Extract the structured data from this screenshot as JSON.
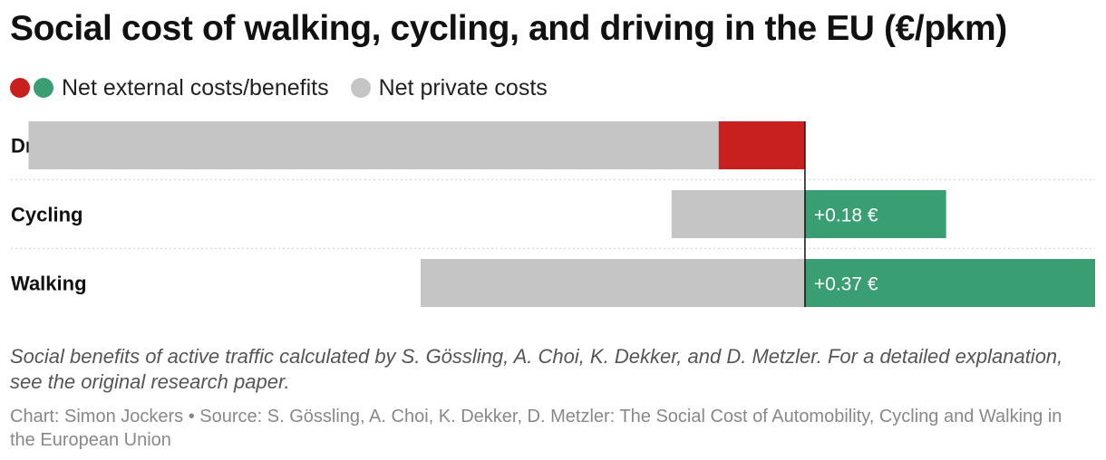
{
  "title": "Social cost of walking, cycling, and driving in the EU (€/pkm)",
  "legend": {
    "external_label": "Net external costs/benefits",
    "private_label": "Net private costs"
  },
  "colors": {
    "external_cost": "#c81f1f",
    "external_benefit": "#399e72",
    "private": "#c5c5c5",
    "axis": "#111111",
    "gridline": "#d5d5d5",
    "text": "#111111"
  },
  "chart_data": {
    "type": "bar",
    "orientation": "horizontal-diverging",
    "title": "Social cost of walking, cycling, and driving in the EU (€/pkm)",
    "categories": [
      "Driving",
      "Cycling",
      "Walking"
    ],
    "series": [
      {
        "name": "Net private costs",
        "values": [
          -0.88,
          -0.17,
          -0.49
        ]
      },
      {
        "name": "Net external costs/benefits",
        "values": [
          -0.11,
          0.18,
          0.37
        ]
      }
    ],
    "data_labels": [
      "",
      "+0.18 €",
      "+0.37 €"
    ],
    "xlim": [
      -0.89,
      0.37
    ],
    "xlabel": "",
    "ylabel": ""
  },
  "footnote": "Social benefits of active traffic calculated by S. Gössling, A. Choi, K. Dekker, and D. Metzler. For a detailed explanation, see the original research paper.",
  "credit": "Chart: Simon Jockers • Source: S. Gössling, A. Choi, K. Dekker, D. Metzler: The Social Cost of Automobility, Cycling and Walking in the European Union"
}
